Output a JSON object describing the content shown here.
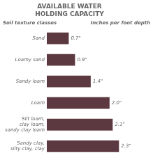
{
  "chart_data": {
    "type": "bar",
    "orientation": "horizontal",
    "title": "AVAILABLE WATER\nHOLDING CAPACITY",
    "annotations": [
      "Soil texture classes",
      "Inches per foot depth"
    ],
    "categories": [
      "Sand",
      "Loamy sand",
      "Sandy loam",
      "Loam",
      "Silt loam,\nclay loam,\nsandy clay loam",
      "Sandy clay,\nsilty clay, clay"
    ],
    "values": [
      0.7,
      0.9,
      1.4,
      2.0,
      2.1,
      2.3
    ],
    "value_labels": [
      "0.7\"",
      "0.9\"",
      "1.4\"",
      "2.0\"",
      "2.1\"",
      "2.3\""
    ],
    "color": "#5c3840",
    "xlim": [
      0,
      2.85
    ],
    "grid": false,
    "data_labels": true,
    "tick_labels": "y"
  }
}
